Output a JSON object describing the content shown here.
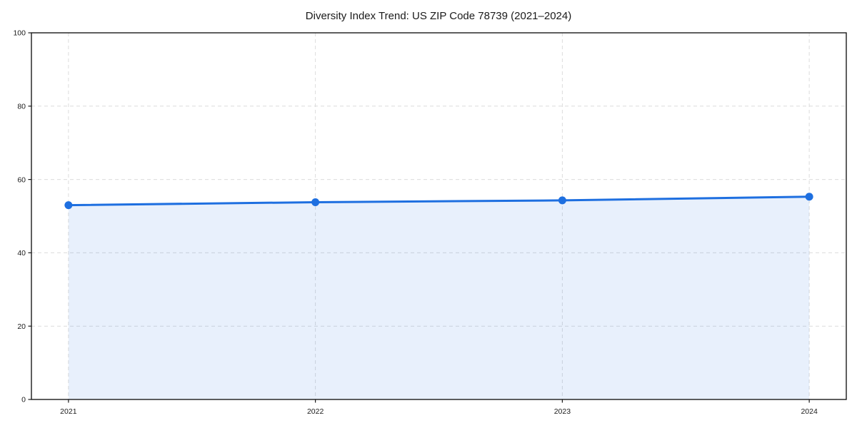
{
  "chart_data": {
    "type": "area",
    "categories": [
      "2021",
      "2022",
      "2023",
      "2024"
    ],
    "series": [
      {
        "name": "Diversity Index",
        "values": [
          53.0,
          53.8,
          54.3,
          55.3
        ]
      }
    ],
    "title": "Diversity Index Trend: US ZIP Code 78739 (2021–2024)",
    "xlabel": "",
    "ylabel": "",
    "ylim": [
      0,
      100
    ],
    "yticks": [
      0,
      20,
      40,
      60,
      80,
      100
    ],
    "grid": true,
    "grid_style": "dashed",
    "legend": "none",
    "colors": {
      "line": "#1e6fe0",
      "marker": "#1e6fe0",
      "fill_opacity": 0.1,
      "gridline": "#dcdcdc",
      "spine": "#1a1a1a",
      "text": "#1a1a1a",
      "background": "#ffffff"
    }
  }
}
